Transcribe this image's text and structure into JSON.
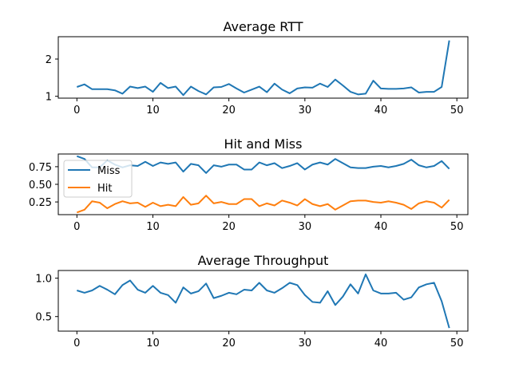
{
  "chart_data": [
    {
      "type": "line",
      "title": "Average RTT",
      "xlabel": "",
      "ylabel": "",
      "xlim": [
        -2.45,
        51.45
      ],
      "ylim": [
        0.95,
        2.6
      ],
      "xticks": [
        0,
        10,
        20,
        30,
        40,
        50
      ],
      "yticks": [
        1,
        2
      ],
      "grid": false,
      "series": [
        {
          "color": "#1f77b4",
          "x": [
            0,
            1,
            2,
            3,
            4,
            5,
            6,
            7,
            8,
            9,
            10,
            11,
            12,
            13,
            14,
            15,
            16,
            17,
            18,
            19,
            20,
            21,
            22,
            23,
            24,
            25,
            26,
            27,
            28,
            29,
            30,
            31,
            32,
            33,
            34,
            35,
            36,
            37,
            38,
            39,
            40,
            41,
            42,
            43,
            44,
            45,
            46,
            47,
            48,
            49
          ],
          "values": [
            1.25,
            1.32,
            1.19,
            1.19,
            1.19,
            1.16,
            1.07,
            1.26,
            1.22,
            1.26,
            1.12,
            1.36,
            1.22,
            1.26,
            1.03,
            1.26,
            1.14,
            1.05,
            1.24,
            1.25,
            1.33,
            1.21,
            1.1,
            1.18,
            1.26,
            1.11,
            1.34,
            1.18,
            1.08,
            1.21,
            1.24,
            1.23,
            1.34,
            1.25,
            1.45,
            1.29,
            1.12,
            1.05,
            1.07,
            1.42,
            1.21,
            1.2,
            1.2,
            1.21,
            1.24,
            1.1,
            1.12,
            1.12,
            1.25,
            2.5
          ]
        }
      ]
    },
    {
      "type": "line",
      "title": "Hit and Miss",
      "xlabel": "",
      "ylabel": "",
      "xlim": [
        -2.45,
        51.45
      ],
      "ylim": [
        0.07,
        0.93
      ],
      "xticks": [
        0,
        10,
        20,
        30,
        40,
        50
      ],
      "yticks": [
        0.25,
        0.5,
        0.75
      ],
      "ytick_labels": [
        "0.25",
        "0.50",
        "0.75"
      ],
      "grid": false,
      "legend": {
        "placement": "center-left",
        "entries": [
          "Miss",
          "Hit"
        ]
      },
      "series": [
        {
          "name": "Miss",
          "color": "#1f77b4",
          "x": [
            0,
            1,
            2,
            3,
            4,
            5,
            6,
            7,
            8,
            9,
            10,
            11,
            12,
            13,
            14,
            15,
            16,
            17,
            18,
            19,
            20,
            21,
            22,
            23,
            24,
            25,
            26,
            27,
            28,
            29,
            30,
            31,
            32,
            33,
            34,
            35,
            36,
            37,
            38,
            39,
            40,
            41,
            42,
            43,
            44,
            45,
            46,
            47,
            48,
            49
          ],
          "values": [
            0.9,
            0.86,
            0.74,
            0.74,
            0.84,
            0.78,
            0.74,
            0.77,
            0.76,
            0.82,
            0.76,
            0.81,
            0.79,
            0.81,
            0.68,
            0.79,
            0.77,
            0.66,
            0.77,
            0.75,
            0.78,
            0.78,
            0.71,
            0.71,
            0.81,
            0.77,
            0.8,
            0.73,
            0.76,
            0.8,
            0.71,
            0.78,
            0.81,
            0.78,
            0.86,
            0.8,
            0.74,
            0.73,
            0.73,
            0.75,
            0.76,
            0.74,
            0.76,
            0.79,
            0.85,
            0.77,
            0.74,
            0.76,
            0.83,
            0.72
          ]
        },
        {
          "name": "Hit",
          "color": "#ff7f0e",
          "x": [
            0,
            1,
            2,
            3,
            4,
            5,
            6,
            7,
            8,
            9,
            10,
            11,
            12,
            13,
            14,
            15,
            16,
            17,
            18,
            19,
            20,
            21,
            22,
            23,
            24,
            25,
            26,
            27,
            28,
            29,
            30,
            31,
            32,
            33,
            34,
            35,
            36,
            37,
            38,
            39,
            40,
            41,
            42,
            43,
            44,
            45,
            46,
            47,
            48,
            49
          ],
          "values": [
            0.1,
            0.14,
            0.26,
            0.24,
            0.16,
            0.22,
            0.26,
            0.23,
            0.24,
            0.18,
            0.24,
            0.19,
            0.21,
            0.19,
            0.32,
            0.21,
            0.23,
            0.34,
            0.23,
            0.25,
            0.22,
            0.22,
            0.29,
            0.29,
            0.19,
            0.23,
            0.2,
            0.27,
            0.24,
            0.2,
            0.29,
            0.22,
            0.19,
            0.22,
            0.14,
            0.2,
            0.26,
            0.27,
            0.27,
            0.25,
            0.24,
            0.26,
            0.24,
            0.21,
            0.15,
            0.23,
            0.26,
            0.24,
            0.17,
            0.28
          ]
        }
      ]
    },
    {
      "type": "line",
      "title": "Average Throughput",
      "xlabel": "",
      "ylabel": "",
      "xlim": [
        -2.45,
        51.45
      ],
      "ylim": [
        0.31,
        1.1
      ],
      "xticks": [
        0,
        10,
        20,
        30,
        40,
        50
      ],
      "yticks": [
        0.5,
        1.0
      ],
      "ytick_labels": [
        "0.5",
        "1.0"
      ],
      "grid": false,
      "series": [
        {
          "color": "#1f77b4",
          "x": [
            0,
            1,
            2,
            3,
            4,
            5,
            6,
            7,
            8,
            9,
            10,
            11,
            12,
            13,
            14,
            15,
            16,
            17,
            18,
            19,
            20,
            21,
            22,
            23,
            24,
            25,
            26,
            27,
            28,
            29,
            30,
            31,
            32,
            33,
            34,
            35,
            36,
            37,
            38,
            39,
            40,
            41,
            42,
            43,
            44,
            45,
            46,
            47,
            48,
            49
          ],
          "values": [
            0.84,
            0.81,
            0.84,
            0.9,
            0.85,
            0.79,
            0.91,
            0.97,
            0.85,
            0.81,
            0.9,
            0.81,
            0.78,
            0.68,
            0.88,
            0.8,
            0.83,
            0.93,
            0.74,
            0.77,
            0.81,
            0.79,
            0.85,
            0.84,
            0.94,
            0.84,
            0.81,
            0.87,
            0.94,
            0.91,
            0.78,
            0.69,
            0.68,
            0.83,
            0.65,
            0.76,
            0.92,
            0.8,
            1.05,
            0.84,
            0.8,
            0.8,
            0.81,
            0.72,
            0.75,
            0.88,
            0.92,
            0.94,
            0.7,
            0.35
          ]
        }
      ]
    }
  ]
}
